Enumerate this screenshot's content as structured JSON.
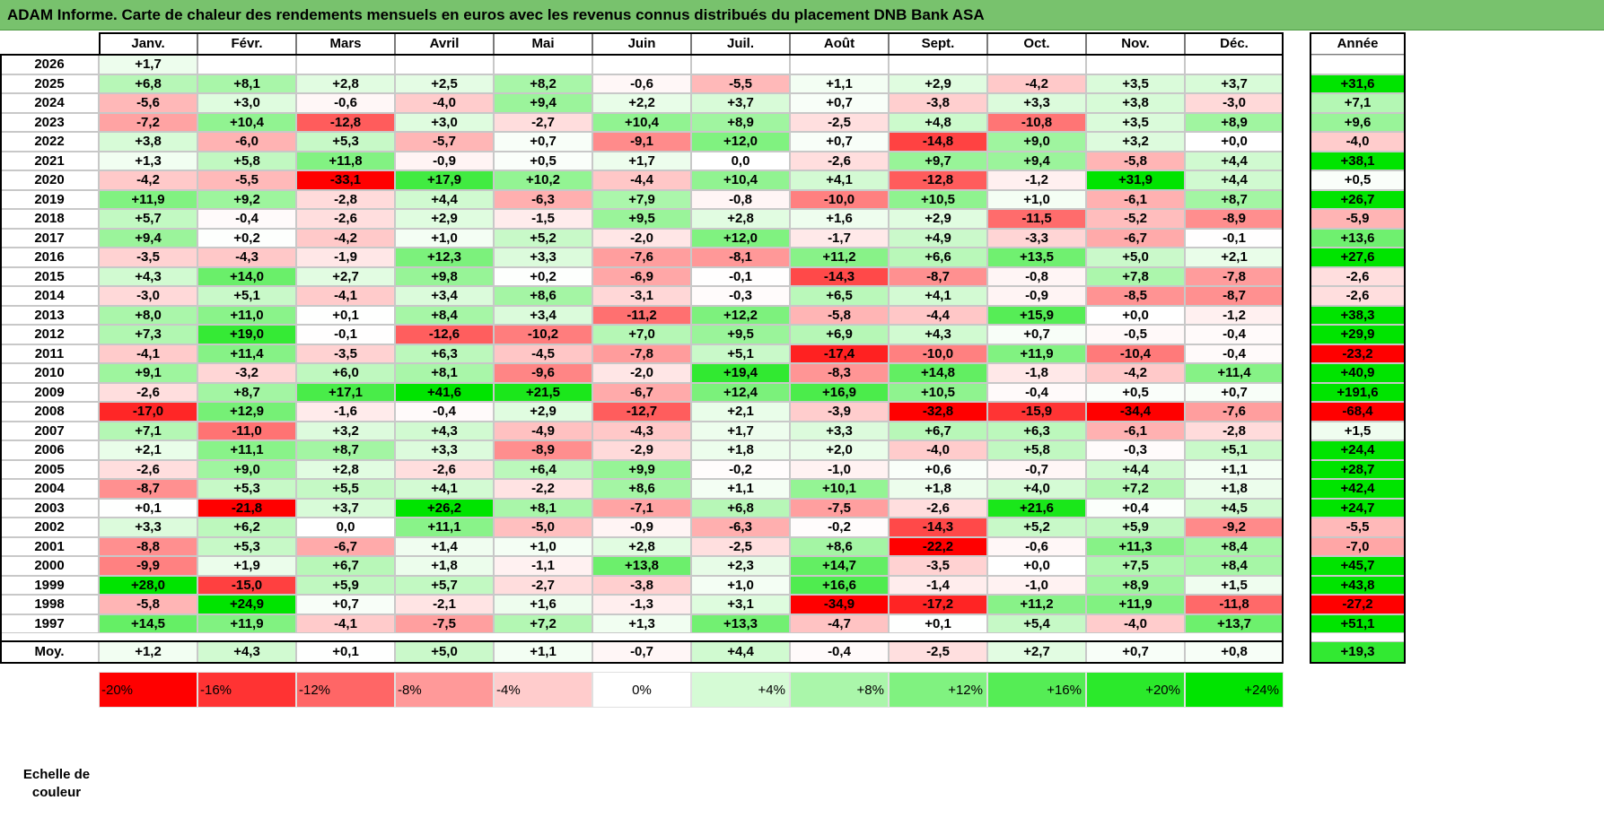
{
  "title": "ADAM Informe. Carte de chaleur des rendements mensuels en euros avec les revenus connus distribués du placement DNB Bank ASA",
  "chart_data": {
    "type": "heatmap",
    "title": "ADAM Informe. Carte de chaleur des rendements mensuels en euros avec les revenus connus distribués du placement DNB Bank ASA",
    "months": [
      "Janv.",
      "Févr.",
      "Mars",
      "Avril",
      "Mai",
      "Juin",
      "Juil.",
      "Août",
      "Sept.",
      "Oct.",
      "Nov.",
      "Déc."
    ],
    "annual_label": "Année",
    "average_label": "Moy.",
    "rows": [
      {
        "year": "2026",
        "values": [
          "+1,7",
          "",
          "",
          "",
          "",
          "",
          "",
          "",
          "",
          "",
          "",
          ""
        ],
        "annual": ""
      },
      {
        "year": "2025",
        "values": [
          "+6,8",
          "+8,1",
          "+2,8",
          "+2,5",
          "+8,2",
          "-0,6",
          "-5,5",
          "+1,1",
          "+2,9",
          "-4,2",
          "+3,5",
          "+3,7"
        ],
        "annual": "+31,6"
      },
      {
        "year": "2024",
        "values": [
          "-5,6",
          "+3,0",
          "-0,6",
          "-4,0",
          "+9,4",
          "+2,2",
          "+3,7",
          "+0,7",
          "-3,8",
          "+3,3",
          "+3,8",
          "-3,0"
        ],
        "annual": "+7,1"
      },
      {
        "year": "2023",
        "values": [
          "-7,2",
          "+10,4",
          "-12,8",
          "+3,0",
          "-2,7",
          "+10,4",
          "+8,9",
          "-2,5",
          "+4,8",
          "-10,8",
          "+3,5",
          "+8,9"
        ],
        "annual": "+9,6"
      },
      {
        "year": "2022",
        "values": [
          "+3,8",
          "-6,0",
          "+5,3",
          "-5,7",
          "+0,7",
          "-9,1",
          "+12,0",
          "+0,7",
          "-14,8",
          "+9,0",
          "+3,2",
          "+0,0"
        ],
        "annual": "-4,0"
      },
      {
        "year": "2021",
        "values": [
          "+1,3",
          "+5,8",
          "+11,8",
          "-0,9",
          "+0,5",
          "+1,7",
          "0,0",
          "-2,6",
          "+9,7",
          "+9,4",
          "-5,8",
          "+4,4"
        ],
        "annual": "+38,1"
      },
      {
        "year": "2020",
        "values": [
          "-4,2",
          "-5,5",
          "-33,1",
          "+17,9",
          "+10,2",
          "-4,4",
          "+10,4",
          "+4,1",
          "-12,8",
          "-1,2",
          "+31,9",
          "+4,4"
        ],
        "annual": "+0,5"
      },
      {
        "year": "2019",
        "values": [
          "+11,9",
          "+9,2",
          "-2,8",
          "+4,4",
          "-6,3",
          "+7,9",
          "-0,8",
          "-10,0",
          "+10,5",
          "+1,0",
          "-6,1",
          "+8,7"
        ],
        "annual": "+26,7"
      },
      {
        "year": "2018",
        "values": [
          "+5,7",
          "-0,4",
          "-2,6",
          "+2,9",
          "-1,5",
          "+9,5",
          "+2,8",
          "+1,6",
          "+2,9",
          "-11,5",
          "-5,2",
          "-8,9"
        ],
        "annual": "-5,9"
      },
      {
        "year": "2017",
        "values": [
          "+9,4",
          "+0,2",
          "-4,2",
          "+1,0",
          "+5,2",
          "-2,0",
          "+12,0",
          "-1,7",
          "+4,9",
          "-3,3",
          "-6,7",
          "-0,1"
        ],
        "annual": "+13,6"
      },
      {
        "year": "2016",
        "values": [
          "-3,5",
          "-4,3",
          "-1,9",
          "+12,3",
          "+3,3",
          "-7,6",
          "-8,1",
          "+11,2",
          "+6,6",
          "+13,5",
          "+5,0",
          "+2,1"
        ],
        "annual": "+27,6"
      },
      {
        "year": "2015",
        "values": [
          "+4,3",
          "+14,0",
          "+2,7",
          "+9,8",
          "+0,2",
          "-6,9",
          "-0,1",
          "-14,3",
          "-8,7",
          "-0,8",
          "+7,8",
          "-7,8"
        ],
        "annual": "-2,6"
      },
      {
        "year": "2014",
        "values": [
          "-3,0",
          "+5,1",
          "-4,1",
          "+3,4",
          "+8,6",
          "-3,1",
          "-0,3",
          "+6,5",
          "+4,1",
          "-0,9",
          "-8,5",
          "-8,7"
        ],
        "annual": "-2,6"
      },
      {
        "year": "2013",
        "values": [
          "+8,0",
          "+11,0",
          "+0,1",
          "+8,4",
          "+3,4",
          "-11,2",
          "+12,2",
          "-5,8",
          "-4,4",
          "+15,9",
          "+0,0",
          "-1,2"
        ],
        "annual": "+38,3"
      },
      {
        "year": "2012",
        "values": [
          "+7,3",
          "+19,0",
          "-0,1",
          "-12,6",
          "-10,2",
          "+7,0",
          "+9,5",
          "+6,9",
          "+4,3",
          "+0,7",
          "-0,5",
          "-0,4"
        ],
        "annual": "+29,9"
      },
      {
        "year": "2011",
        "values": [
          "-4,1",
          "+11,4",
          "-3,5",
          "+6,3",
          "-4,5",
          "-7,8",
          "+5,1",
          "-17,4",
          "-10,0",
          "+11,9",
          "-10,4",
          "-0,4"
        ],
        "annual": "-23,2"
      },
      {
        "year": "2010",
        "values": [
          "+9,1",
          "-3,2",
          "+6,0",
          "+8,1",
          "-9,6",
          "-2,0",
          "+19,4",
          "-8,3",
          "+14,8",
          "-1,8",
          "-4,2",
          "+11,4"
        ],
        "annual": "+40,9"
      },
      {
        "year": "2009",
        "values": [
          "-2,6",
          "+8,7",
          "+17,1",
          "+41,6",
          "+21,5",
          "-6,7",
          "+12,4",
          "+16,9",
          "+10,5",
          "-0,4",
          "+0,5",
          "+0,7"
        ],
        "annual": "+191,6"
      },
      {
        "year": "2008",
        "values": [
          "-17,0",
          "+12,9",
          "-1,6",
          "-0,4",
          "+2,9",
          "-12,7",
          "+2,1",
          "-3,9",
          "-32,8",
          "-15,9",
          "-34,4",
          "-7,6"
        ],
        "annual": "-68,4"
      },
      {
        "year": "2007",
        "values": [
          "+7,1",
          "-11,0",
          "+3,2",
          "+4,3",
          "-4,9",
          "-4,3",
          "+1,7",
          "+3,3",
          "+6,7",
          "+6,3",
          "-6,1",
          "-2,8"
        ],
        "annual": "+1,5"
      },
      {
        "year": "2006",
        "values": [
          "+2,1",
          "+11,1",
          "+8,7",
          "+3,3",
          "-8,9",
          "-2,9",
          "+1,8",
          "+2,0",
          "-4,0",
          "+5,8",
          "-0,3",
          "+5,1"
        ],
        "annual": "+24,4"
      },
      {
        "year": "2005",
        "values": [
          "-2,6",
          "+9,0",
          "+2,8",
          "-2,6",
          "+6,4",
          "+9,9",
          "-0,2",
          "-1,0",
          "+0,6",
          "-0,7",
          "+4,4",
          "+1,1"
        ],
        "annual": "+28,7"
      },
      {
        "year": "2004",
        "values": [
          "-8,7",
          "+5,3",
          "+5,5",
          "+4,1",
          "-2,2",
          "+8,6",
          "+1,1",
          "+10,1",
          "+1,8",
          "+4,0",
          "+7,2",
          "+1,8"
        ],
        "annual": "+42,4"
      },
      {
        "year": "2003",
        "values": [
          "+0,1",
          "-21,8",
          "+3,7",
          "+26,2",
          "+8,1",
          "-7,1",
          "+6,8",
          "-7,5",
          "-2,6",
          "+21,6",
          "+0,4",
          "+4,5"
        ],
        "annual": "+24,7"
      },
      {
        "year": "2002",
        "values": [
          "+3,3",
          "+6,2",
          "0,0",
          "+11,1",
          "-5,0",
          "-0,9",
          "-6,3",
          "-0,2",
          "-14,3",
          "+5,2",
          "+5,9",
          "-9,2"
        ],
        "annual": "-5,5"
      },
      {
        "year": "2001",
        "values": [
          "-8,8",
          "+5,3",
          "-6,7",
          "+1,4",
          "+1,0",
          "+2,8",
          "-2,5",
          "+8,6",
          "-22,2",
          "-0,6",
          "+11,3",
          "+8,4"
        ],
        "annual": "-7,0"
      },
      {
        "year": "2000",
        "values": [
          "-9,9",
          "+1,9",
          "+6,7",
          "+1,8",
          "-1,1",
          "+13,8",
          "+2,3",
          "+14,7",
          "-3,5",
          "+0,0",
          "+7,5",
          "+8,4"
        ],
        "annual": "+45,7"
      },
      {
        "year": "1999",
        "values": [
          "+28,0",
          "-15,0",
          "+5,9",
          "+5,7",
          "-2,7",
          "-3,8",
          "+1,0",
          "+16,6",
          "-1,4",
          "-1,0",
          "+8,9",
          "+1,5"
        ],
        "annual": "+43,8"
      },
      {
        "year": "1998",
        "values": [
          "-5,8",
          "+24,9",
          "+0,7",
          "-2,1",
          "+1,6",
          "-1,3",
          "+3,1",
          "-34,9",
          "-17,2",
          "+11,2",
          "+11,9",
          "-11,8"
        ],
        "annual": "-27,2"
      },
      {
        "year": "1997",
        "values": [
          "+14,5",
          "+11,9",
          "-4,1",
          "-7,5",
          "+7,2",
          "+1,3",
          "+13,3",
          "-4,7",
          "+0,1",
          "+5,4",
          "-4,0",
          "+13,7"
        ],
        "annual": "+51,1"
      }
    ],
    "average": {
      "values": [
        "+1,2",
        "+4,3",
        "+0,1",
        "+5,0",
        "+1,1",
        "-0,7",
        "+4,4",
        "-0,4",
        "-2,5",
        "+2,7",
        "+0,7",
        "+0,8"
      ],
      "annual": "+19,3"
    },
    "scale_label": "Echelle de couleur",
    "scale": [
      "-20%",
      "-16%",
      "-12%",
      "-8%",
      "-4%",
      "0%",
      "+4%",
      "+8%",
      "+12%",
      "+16%",
      "+20%",
      "+24%"
    ],
    "colors": {
      "title_bg": "#78c26d",
      "neg_max": "#ff0000",
      "pos_max": "#00e400",
      "neutral": "#ffffff"
    }
  }
}
